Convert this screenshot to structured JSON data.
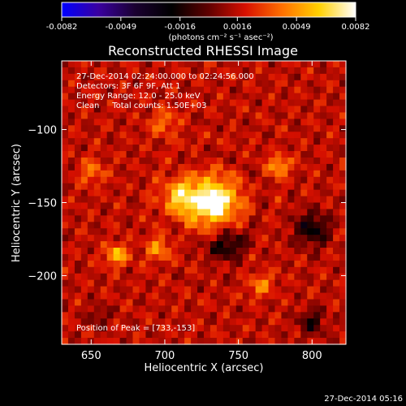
{
  "chart_data": {
    "type": "heatmap",
    "title": "Reconstructed RHESSI Image",
    "xlabel": "Heliocentric X (arcsec)",
    "ylabel": "Heliocentric Y (arcsec)",
    "xlim": [
      630,
      823
    ],
    "ylim": [
      -247,
      -53
    ],
    "x_ticks": [
      650,
      700,
      750,
      800
    ],
    "y_ticks": [
      -100,
      -150,
      -200
    ],
    "colorbar": {
      "label": "(photons cm⁻² s⁻¹ asec⁻²)",
      "range": [
        -0.0082,
        0.0082
      ],
      "ticks": [
        "-0.0082",
        "-0.0049",
        "-0.0016",
        "0.0016",
        "0.0049",
        "0.0082"
      ]
    },
    "info_lines": [
      "27-Dec-2014 02:24:00.000 to 02:24:56.000",
      "Detectors: 3F 6F 9F, Att 1",
      "Energy Range: 12.0 - 25.0 keV",
      "Clean     Total counts: 1.50E+03"
    ],
    "peak": {
      "x": 733,
      "y": -153
    },
    "peak_label": "Position of Peak = [733,-153]",
    "sources": [
      {
        "x": 733,
        "y": -150,
        "sigma": 11,
        "amplitude": 0.0082
      },
      {
        "x": 710,
        "y": -146,
        "sigma": 9,
        "amplitude": 0.0042
      },
      {
        "x": 667,
        "y": -186,
        "sigma": 5,
        "amplitude": 0.0045
      },
      {
        "x": 778,
        "y": -125,
        "sigma": 5,
        "amplitude": 0.004
      },
      {
        "x": 695,
        "y": -182,
        "sigma": 6,
        "amplitude": 0.003
      },
      {
        "x": 765,
        "y": -206,
        "sigma": 6,
        "amplitude": 0.0026
      },
      {
        "x": 651,
        "y": -129,
        "sigma": 6,
        "amplitude": 0.0025
      },
      {
        "x": 700,
        "y": -96,
        "sigma": 7,
        "amplitude": 0.0022
      },
      {
        "x": 800,
        "y": -168,
        "sigma": 8,
        "amplitude": -0.0038
      },
      {
        "x": 742,
        "y": -178,
        "sigma": 9,
        "amplitude": -0.0032
      },
      {
        "x": 800,
        "y": -232,
        "sigma": 6,
        "amplitude": -0.003
      },
      {
        "x": 655,
        "y": -228,
        "sigma": 5,
        "amplitude": -0.0018
      }
    ],
    "colors": {
      "colormap": [
        "#0000ff",
        "#3a00a0",
        "#1a0030",
        "#000000",
        "#600000",
        "#d81000",
        "#ff7000",
        "#ffd000",
        "#ffffff"
      ],
      "background": "#000000",
      "text": "#ffffff"
    }
  },
  "footer_timestamp": "27-Dec-2014 05:16"
}
